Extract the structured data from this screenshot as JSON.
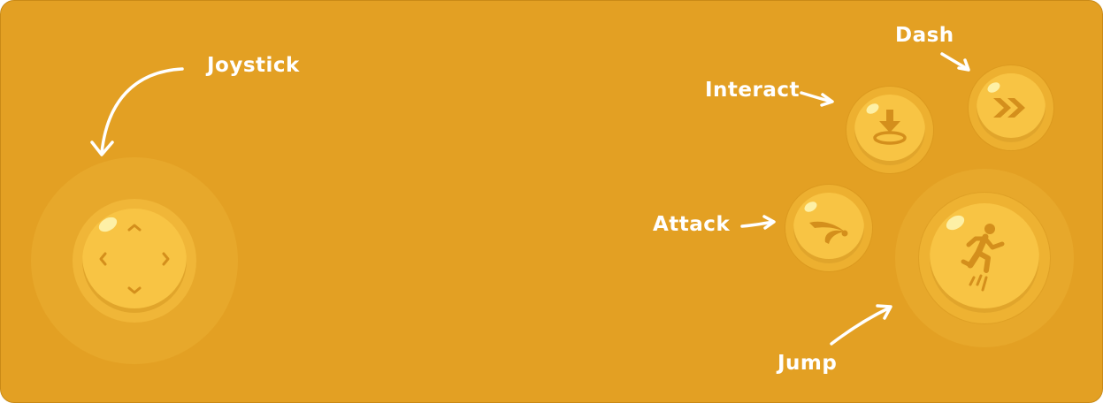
{
  "controls": {
    "joystick": {
      "label": "Joystick",
      "icons": [
        "chevron-up-icon",
        "chevron-down-icon",
        "chevron-left-icon",
        "chevron-right-icon"
      ]
    },
    "interact": {
      "label": "Interact",
      "icon": "download-target-icon"
    },
    "dash": {
      "label": "Dash",
      "icon": "double-chevron-right-icon"
    },
    "attack": {
      "label": "Attack",
      "icon": "slash-icon"
    },
    "jump": {
      "label": "Jump",
      "icon": "running-figure-icon"
    }
  },
  "colors": {
    "background": "#e3a023",
    "button": "#f8c444",
    "icon": "#d48f1c",
    "label": "#ffffff"
  }
}
